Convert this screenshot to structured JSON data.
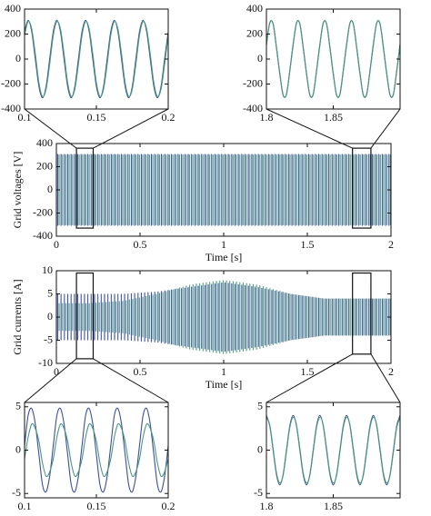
{
  "chart_data": [
    {
      "type": "line",
      "xlim": [
        0.1,
        0.2
      ],
      "ylim": [
        -400,
        400
      ],
      "xticks": [
        0.1,
        0.15,
        0.2
      ],
      "yticks": [
        -400,
        -200,
        0,
        200,
        400
      ],
      "x": [
        0.1,
        0.1025,
        0.105,
        0.1075,
        0.11,
        0.1125,
        0.115,
        0.1175,
        0.12,
        0.1225,
        0.125,
        0.1275,
        0.13,
        0.1325,
        0.135,
        0.1375,
        0.14,
        0.1425,
        0.145,
        0.1475,
        0.15,
        0.1525,
        0.155,
        0.1575,
        0.16,
        0.1625,
        0.165,
        0.1675,
        0.17,
        0.1725,
        0.175,
        0.1775,
        0.18,
        0.1825,
        0.185,
        0.1875,
        0.19,
        0.1925,
        0.195,
        0.1975,
        0.2
      ],
      "series": [
        {
          "color": "#3a4fa0",
          "values": [
            219,
            310,
            219,
            0,
            -219,
            -310,
            -219,
            0,
            219,
            310,
            219,
            0,
            -219,
            -310,
            -219,
            0,
            219,
            310,
            219,
            0,
            -219,
            -310,
            -219,
            0,
            219,
            310,
            219,
            0,
            -219,
            -310,
            -219,
            0,
            219,
            310,
            219,
            0,
            -219,
            -310,
            -219,
            0,
            219
          ]
        },
        {
          "color": "#4a9a7a",
          "values": [
            190,
            300,
            240,
            40,
            -190,
            -300,
            -240,
            -40,
            190,
            300,
            240,
            40,
            -190,
            -300,
            -240,
            -40,
            190,
            300,
            240,
            40,
            -190,
            -300,
            -240,
            -40,
            190,
            300,
            240,
            40,
            -190,
            -300,
            -240,
            -40,
            190,
            300,
            240,
            40,
            -190,
            -300,
            -240,
            -40,
            190
          ]
        }
      ]
    },
    {
      "type": "line",
      "xlim": [
        1.8,
        1.9
      ],
      "ylim": [
        -400,
        400
      ],
      "xticks": [
        1.8,
        1.85
      ],
      "yticks": [
        -400,
        -200,
        0,
        200,
        400
      ],
      "x": [
        1.8,
        1.8025,
        1.805,
        1.8075,
        1.81,
        1.8125,
        1.815,
        1.8175,
        1.82,
        1.8225,
        1.825,
        1.8275,
        1.83,
        1.8325,
        1.835,
        1.8375,
        1.84,
        1.8425,
        1.845,
        1.8475,
        1.85,
        1.8525,
        1.855,
        1.8575,
        1.86,
        1.8625,
        1.865,
        1.8675,
        1.87,
        1.8725,
        1.875,
        1.8775,
        1.88,
        1.8825,
        1.885,
        1.8875,
        1.89,
        1.8925,
        1.895,
        1.8975,
        1.9
      ],
      "series": [
        {
          "color": "#3a4fa0",
          "values": [
            120,
            290,
            280,
            90,
            -120,
            -290,
            -280,
            -90,
            120,
            290,
            280,
            90,
            -120,
            -290,
            -280,
            -90,
            120,
            290,
            280,
            90,
            -120,
            -290,
            -280,
            -90,
            120,
            290,
            280,
            90,
            -120,
            -290,
            -280,
            -90,
            120,
            290,
            280,
            90,
            -120,
            -290,
            -280,
            -90,
            120
          ]
        },
        {
          "color": "#4a9a7a",
          "values": [
            110,
            285,
            285,
            100,
            -110,
            -285,
            -285,
            -100,
            110,
            285,
            285,
            100,
            -110,
            -285,
            -285,
            -100,
            110,
            285,
            285,
            100,
            -110,
            -285,
            -285,
            -100,
            110,
            285,
            285,
            100,
            -110,
            -285,
            -285,
            -100,
            110,
            285,
            285,
            100,
            -110,
            -285,
            -285,
            -100,
            110
          ]
        }
      ]
    },
    {
      "type": "area",
      "xlabel": "Time [s]",
      "ylabel": "Grid voltages [V]",
      "xlim": [
        0,
        2
      ],
      "ylim": [
        -400,
        400
      ],
      "xticks": [
        0,
        0.5,
        1,
        1.5,
        2
      ],
      "yticks": [
        -400,
        -200,
        0,
        200,
        400
      ],
      "x": [
        0,
        2
      ],
      "series": [
        {
          "color": "#3a4fa0",
          "upper": [
            310,
            310
          ],
          "lower": [
            -310,
            -310
          ]
        },
        {
          "color": "#4a9a7a",
          "upper": [
            305,
            305
          ],
          "lower": [
            -305,
            -305
          ]
        }
      ],
      "zoom_boxes": [
        {
          "xlim": [
            0.12,
            0.22
          ],
          "ylim": [
            -330,
            360
          ]
        },
        {
          "xlim": [
            1.77,
            1.88
          ],
          "ylim": [
            -330,
            360
          ]
        }
      ]
    },
    {
      "type": "area",
      "xlabel": "Time [s]",
      "ylabel": "Grid currents [A]",
      "xlim": [
        0,
        2
      ],
      "ylim": [
        -10,
        10
      ],
      "xticks": [
        0,
        0.5,
        1,
        1.5,
        2
      ],
      "yticks": [
        -10,
        -5,
        0,
        5,
        10
      ],
      "x": [
        0,
        0.2,
        0.4,
        0.6,
        0.8,
        1.0,
        1.2,
        1.4,
        1.6,
        1.8,
        2.0
      ],
      "series": [
        {
          "color": "#3a4fa0",
          "upper": [
            5,
            5,
            5,
            5.5,
            6.5,
            7.5,
            6.5,
            5,
            4,
            4,
            4
          ],
          "lower": [
            -5,
            -5,
            -5,
            -5.5,
            -6.5,
            -7.5,
            -6.5,
            -5,
            -4,
            -4,
            -4
          ]
        },
        {
          "color": "#4a9a7a",
          "upper": [
            3,
            3,
            3.5,
            5,
            7,
            8,
            7,
            5,
            4,
            4,
            4
          ],
          "lower": [
            -3,
            -3,
            -3.5,
            -5,
            -7,
            -8,
            -7,
            -5,
            -4,
            -4,
            -4
          ]
        }
      ],
      "zoom_boxes": [
        {
          "xlim": [
            0.12,
            0.22
          ],
          "ylim": [
            -9,
            9.5
          ]
        },
        {
          "xlim": [
            1.77,
            1.88
          ],
          "ylim": [
            -8,
            9.5
          ]
        }
      ]
    },
    {
      "type": "line",
      "xlim": [
        0.1,
        0.2
      ],
      "ylim": [
        -5.5,
        5.5
      ],
      "xticks": [
        0.1,
        0.15,
        0.2
      ],
      "yticks": [
        -5,
        0,
        5
      ],
      "x": [
        0.1,
        0.1025,
        0.105,
        0.1075,
        0.11,
        0.1125,
        0.115,
        0.1175,
        0.12,
        0.1225,
        0.125,
        0.1275,
        0.13,
        0.1325,
        0.135,
        0.1375,
        0.14,
        0.1425,
        0.145,
        0.1475,
        0.15,
        0.1525,
        0.155,
        0.1575,
        0.16,
        0.1625,
        0.165,
        0.1675,
        0.17,
        0.1725,
        0.175,
        0.1775,
        0.18,
        0.1825,
        0.185,
        0.1875,
        0.19,
        0.1925,
        0.195,
        0.1975,
        0.2
      ],
      "series": [
        {
          "color": "#3a4fa0",
          "values": [
            0.5,
            4,
            4.8,
            3,
            -0.5,
            -4,
            -4.8,
            -3,
            0.5,
            4,
            4.8,
            3,
            -0.5,
            -4,
            -4.8,
            -3,
            0.5,
            4,
            4.8,
            3,
            -0.5,
            -4,
            -4.8,
            -3,
            0.5,
            4,
            4.8,
            3,
            -0.5,
            -4,
            -4.8,
            -3,
            0.5,
            4,
            4.8,
            3,
            -0.5,
            -4,
            -4.8,
            -3,
            0.5
          ]
        },
        {
          "color": "#4a9a7a",
          "values": [
            -1,
            1.5,
            3,
            2.5,
            1,
            -1.5,
            -3,
            -2.5,
            -1,
            1.5,
            3,
            2.5,
            1,
            -1.5,
            -3,
            -2.5,
            -1,
            1.5,
            3,
            2.5,
            1,
            -1.5,
            -3,
            -2.5,
            -1,
            1.5,
            3,
            2.5,
            1,
            -1.5,
            -3,
            -2.5,
            -1,
            1.5,
            3,
            2.5,
            1,
            -1.5,
            -3,
            -2.5,
            -1
          ]
        }
      ]
    },
    {
      "type": "line",
      "xlim": [
        1.8,
        1.9
      ],
      "ylim": [
        -5.5,
        5.5
      ],
      "xticks": [
        1.8,
        1.85
      ],
      "yticks": [
        -5,
        0,
        5
      ],
      "x": [
        1.8,
        1.8025,
        1.805,
        1.8075,
        1.81,
        1.8125,
        1.815,
        1.8175,
        1.82,
        1.8225,
        1.825,
        1.8275,
        1.83,
        1.8325,
        1.835,
        1.8375,
        1.84,
        1.8425,
        1.845,
        1.8475,
        1.85,
        1.8525,
        1.855,
        1.8575,
        1.86,
        1.8625,
        1.865,
        1.8675,
        1.87,
        1.8725,
        1.875,
        1.8775,
        1.88,
        1.8825,
        1.885,
        1.8875,
        1.89,
        1.8925,
        1.895,
        1.8975,
        1.9
      ],
      "series": [
        {
          "color": "#3a4fa0",
          "values": [
            4,
            2.8,
            0,
            -2.8,
            -4,
            -2.8,
            0,
            2.8,
            4,
            2.8,
            0,
            -2.8,
            -4,
            -2.8,
            0,
            2.8,
            4,
            2.8,
            0,
            -2.8,
            -4,
            -2.8,
            0,
            2.8,
            4,
            2.8,
            0,
            -2.8,
            -4,
            -2.8,
            0,
            2.8,
            4,
            2.8,
            0,
            -2.8,
            -4,
            -2.8,
            0,
            2.8,
            4
          ]
        },
        {
          "color": "#4a9a7a",
          "values": [
            3.8,
            2.9,
            0.2,
            -2.6,
            -3.8,
            -2.9,
            -0.2,
            2.6,
            3.8,
            2.9,
            0.2,
            -2.6,
            -3.8,
            -2.9,
            -0.2,
            2.6,
            3.8,
            2.9,
            0.2,
            -2.6,
            -3.8,
            -2.9,
            -0.2,
            2.6,
            3.8,
            2.9,
            0.2,
            -2.6,
            -3.8,
            -2.9,
            -0.2,
            2.6,
            3.8,
            2.9,
            0.2,
            -2.6,
            -3.8,
            -2.9,
            -0.2,
            2.6,
            3.8
          ]
        }
      ]
    }
  ]
}
